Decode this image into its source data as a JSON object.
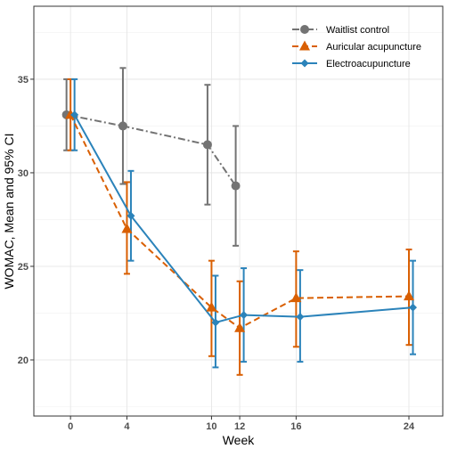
{
  "chart_data": {
    "type": "line",
    "title": "",
    "xlabel": "Week",
    "ylabel": "WOMAC, Mean and 95% CI",
    "x_ticks": [
      0,
      4,
      10,
      12,
      16,
      24
    ],
    "y_ticks": [
      20,
      25,
      30,
      35
    ],
    "xlim": [
      -2.6,
      26.4
    ],
    "ylim": [
      17.0,
      38.9
    ],
    "grid": true,
    "legend_position": "top-right",
    "series": [
      {
        "name": "Waitlist control",
        "color": "#737373",
        "line_style": "dot-dash",
        "marker": "circle",
        "points": [
          {
            "x": 0,
            "y": 33.1,
            "lo": 31.2,
            "hi": 35.0
          },
          {
            "x": 4,
            "y": 32.5,
            "lo": 29.4,
            "hi": 35.6
          },
          {
            "x": 10,
            "y": 31.5,
            "lo": 28.3,
            "hi": 34.7
          },
          {
            "x": 12,
            "y": 29.3,
            "lo": 26.1,
            "hi": 32.5
          }
        ]
      },
      {
        "name": "Auricular acupuncture",
        "color": "#d95f02",
        "line_style": "dashed",
        "marker": "triangle",
        "points": [
          {
            "x": 0,
            "y": 33.1,
            "lo": 31.2,
            "hi": 35.0
          },
          {
            "x": 4,
            "y": 27.0,
            "lo": 24.6,
            "hi": 29.5
          },
          {
            "x": 10,
            "y": 22.8,
            "lo": 20.2,
            "hi": 25.3
          },
          {
            "x": 12,
            "y": 21.7,
            "lo": 19.2,
            "hi": 24.2
          },
          {
            "x": 16,
            "y": 23.3,
            "lo": 20.7,
            "hi": 25.8
          },
          {
            "x": 24,
            "y": 23.4,
            "lo": 20.8,
            "hi": 25.9
          }
        ]
      },
      {
        "name": "Electroacupuncture",
        "color": "#2b83ba",
        "line_style": "solid",
        "marker": "diamond",
        "points": [
          {
            "x": 0,
            "y": 33.1,
            "lo": 31.2,
            "hi": 35.0
          },
          {
            "x": 4,
            "y": 27.7,
            "lo": 25.3,
            "hi": 30.1
          },
          {
            "x": 10,
            "y": 22.0,
            "lo": 19.6,
            "hi": 24.5
          },
          {
            "x": 12,
            "y": 22.4,
            "lo": 19.9,
            "hi": 24.9
          },
          {
            "x": 16,
            "y": 22.3,
            "lo": 19.9,
            "hi": 24.8
          },
          {
            "x": 24,
            "y": 22.8,
            "lo": 20.3,
            "hi": 25.3
          }
        ]
      }
    ]
  }
}
